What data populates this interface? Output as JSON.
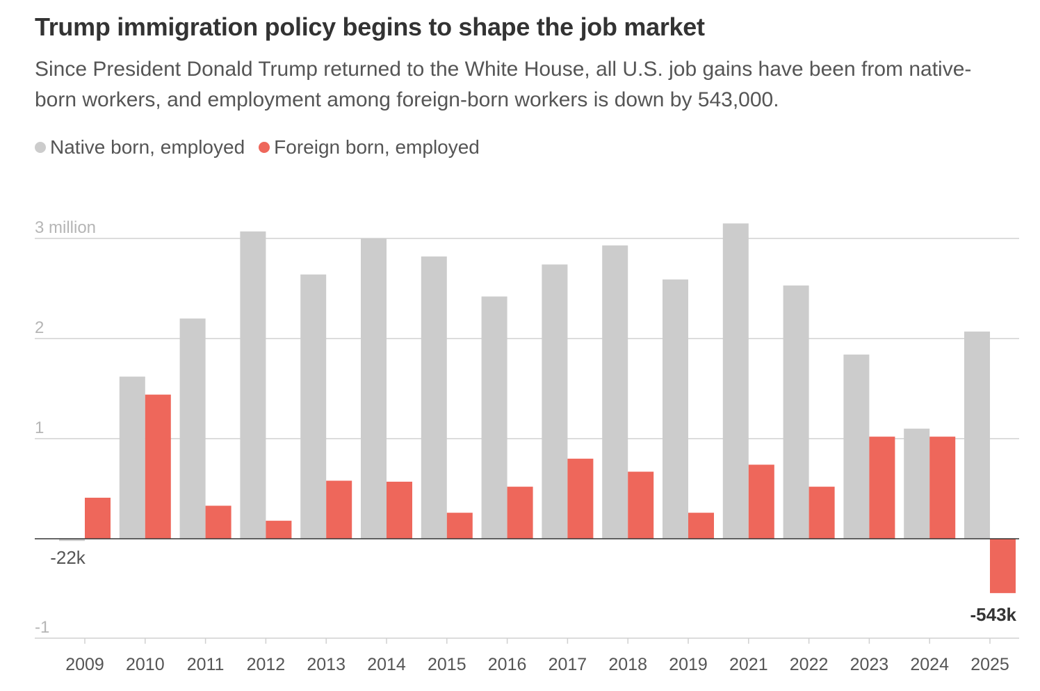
{
  "header": {
    "title": "Trump immigration policy begins to shape the job market",
    "subtitle": "Since President Donald Trump returned to the White House, all U.S. job gains have been from native-born workers, and employment among foreign-born workers is down by 543,000."
  },
  "colors": {
    "native": "#cccccc",
    "foreign": "#ee675b",
    "grid": "#d0d0d0",
    "axis_text": "#555555",
    "zero_line": "#333333"
  },
  "chart_data": {
    "type": "bar",
    "categories": [
      "2009",
      "2010",
      "2011",
      "2012",
      "2013",
      "2014",
      "2015",
      "2016",
      "2017",
      "2018",
      "2019",
      "2021",
      "2022",
      "2023",
      "2024",
      "2025"
    ],
    "series": [
      {
        "name": "Native born, employed",
        "values": [
          -0.022,
          1.62,
          2.2,
          3.07,
          2.64,
          3.0,
          2.82,
          2.42,
          2.74,
          2.93,
          2.59,
          3.15,
          2.53,
          1.84,
          1.1,
          2.07
        ]
      },
      {
        "name": "Foreign born, employed",
        "values": [
          0.41,
          1.44,
          0.33,
          0.18,
          0.58,
          0.57,
          0.26,
          0.52,
          0.8,
          0.67,
          0.26,
          0.74,
          0.52,
          1.02,
          1.02,
          -0.543
        ]
      }
    ],
    "y_ticks": [
      {
        "value": 3,
        "label": "3 million"
      },
      {
        "value": 2,
        "label": "2"
      },
      {
        "value": 1,
        "label": "1"
      },
      {
        "value": -1,
        "label": "-1"
      }
    ],
    "ylim": [
      -1,
      3.3
    ],
    "annotations": [
      {
        "series": 0,
        "index": 0,
        "label": "-22k",
        "bold": false
      },
      {
        "series": 1,
        "index": 15,
        "label": "-543k",
        "bold": true
      }
    ],
    "grid": true,
    "legend_position": "top-left"
  }
}
